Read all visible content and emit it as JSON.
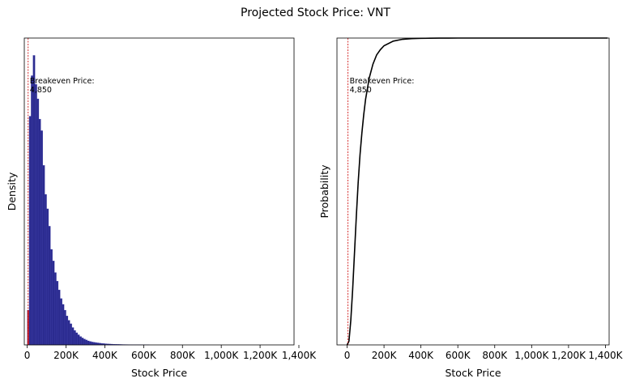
{
  "figure": {
    "title": "Projected Stock Price: VNT"
  },
  "chart_data": [
    {
      "type": "bar",
      "subtype": "histogram",
      "xlabel": "Stock Price",
      "ylabel": "Density",
      "xlim": [
        -15000,
        1375000
      ],
      "ylim": [
        0,
        1.06
      ],
      "ytick_labels": false,
      "xticks": [
        {
          "value": 0,
          "label": "0"
        },
        {
          "value": 200000,
          "label": "200K"
        },
        {
          "value": 400000,
          "label": "400K"
        },
        {
          "value": 600000,
          "label": "600K"
        },
        {
          "value": 800000,
          "label": "800K"
        },
        {
          "value": 1000000,
          "label": "1,000K"
        },
        {
          "value": 1200000,
          "label": "1,200K"
        },
        {
          "value": 1400000,
          "label": "1,400K"
        }
      ],
      "bin_start": 0,
      "bin_width": 10000,
      "bar_color": "#2b2b8f",
      "bar_color_below_breakeven": "#cc2222",
      "values": [
        0.12,
        0.79,
        0.93,
        1.0,
        0.9,
        0.85,
        0.78,
        0.74,
        0.62,
        0.52,
        0.47,
        0.41,
        0.33,
        0.29,
        0.25,
        0.22,
        0.19,
        0.16,
        0.14,
        0.12,
        0.1,
        0.085,
        0.073,
        0.06,
        0.05,
        0.042,
        0.035,
        0.029,
        0.024,
        0.02,
        0.017,
        0.014,
        0.012,
        0.01,
        0.009,
        0.008,
        0.007,
        0.006,
        0.005,
        0.0045,
        0.004,
        0.0035,
        0.003,
        0.0027,
        0.0024,
        0.0021,
        0.0019,
        0.0017,
        0.0015,
        0.0013,
        0.0012,
        0.0011,
        0.001,
        0.0009,
        0.0008,
        0.0007,
        0.0006,
        0.0005,
        0.0005,
        0.0004,
        0.0004,
        0.0003,
        0.0003
      ],
      "breakeven": {
        "value": 4850,
        "label": "Breakeven Price:\n4,850",
        "color": "#cc0000"
      }
    },
    {
      "type": "line",
      "subtype": "cdf",
      "xlabel": "Stock Price",
      "ylabel": "Probability",
      "xlim": [
        -55000,
        1420000
      ],
      "ylim": [
        0,
        1.0
      ],
      "ytick_labels": false,
      "xticks": [
        {
          "value": 0,
          "label": "0"
        },
        {
          "value": 200000,
          "label": "200K"
        },
        {
          "value": 400000,
          "label": "400K"
        },
        {
          "value": 600000,
          "label": "600K"
        },
        {
          "value": 800000,
          "label": "800K"
        },
        {
          "value": 1000000,
          "label": "1,000K"
        },
        {
          "value": 1200000,
          "label": "1,200K"
        },
        {
          "value": 1400000,
          "label": "1,400K"
        }
      ],
      "line_color": "#000000",
      "x": [
        0,
        10000,
        20000,
        30000,
        40000,
        50000,
        60000,
        70000,
        80000,
        90000,
        100000,
        120000,
        140000,
        160000,
        180000,
        200000,
        250000,
        300000,
        350000,
        400000,
        450000,
        500000,
        550000,
        600000,
        620000
      ],
      "y": [
        0.0,
        0.012,
        0.08,
        0.18,
        0.3,
        0.42,
        0.53,
        0.62,
        0.69,
        0.75,
        0.8,
        0.87,
        0.915,
        0.945,
        0.962,
        0.975,
        0.99,
        0.996,
        0.998,
        0.999,
        0.9995,
        0.9998,
        0.9999,
        1.0,
        1.0
      ],
      "breakeven": {
        "value": 4850,
        "label": "Breakeven Price:\n4,850",
        "color": "#cc0000"
      }
    }
  ]
}
